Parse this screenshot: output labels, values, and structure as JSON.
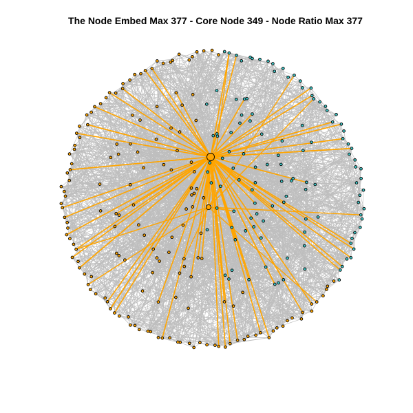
{
  "title": "The Node Embed Max 377 - Core Node 349 - Node Ratio Max 377",
  "colors": {
    "edge": "#bebebe",
    "highlight_edge": "#ffa500",
    "node_orange": "#ffa500",
    "node_cyan": "#40c8c8",
    "node_stroke": "#000000",
    "background": "#ffffff"
  }
}
